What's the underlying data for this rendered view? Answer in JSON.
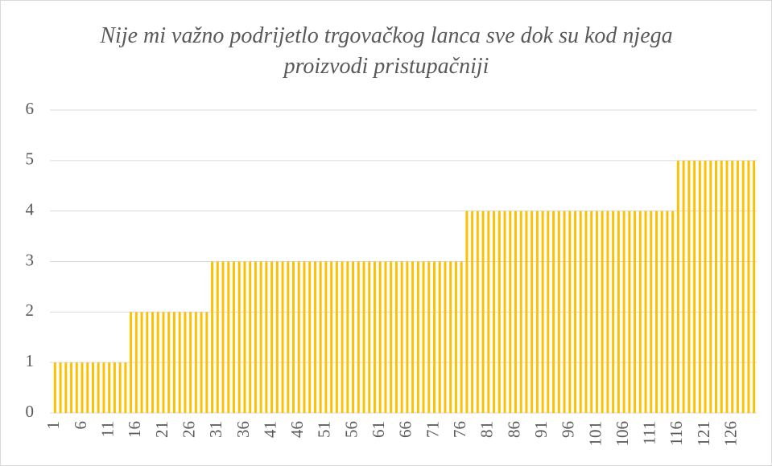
{
  "chart_data": {
    "type": "bar",
    "title": "Nije mi važno podrijetlo trgovačkog lanca sve dok su kod njega proizvodi pristupačniji",
    "categories": [
      1,
      null,
      null,
      null,
      null,
      6,
      null,
      null,
      null,
      null,
      11,
      null,
      null,
      null,
      null,
      16,
      null,
      null,
      null,
      null,
      21,
      null,
      null,
      null,
      null,
      26,
      null,
      null,
      null,
      null,
      31,
      null,
      null,
      null,
      null,
      36,
      null,
      null,
      null,
      null,
      41,
      null,
      null,
      null,
      null,
      46,
      null,
      null,
      null,
      null,
      51,
      null,
      null,
      null,
      null,
      56,
      null,
      null,
      null,
      null,
      61,
      null,
      null,
      null,
      null,
      66,
      null,
      null,
      null,
      null,
      71,
      null,
      null,
      null,
      null,
      76,
      null,
      null,
      null,
      null,
      81,
      null,
      null,
      null,
      null,
      86,
      null,
      null,
      null,
      null,
      91,
      null,
      null,
      null,
      null,
      96,
      null,
      null,
      null,
      null,
      101,
      null,
      null,
      null,
      null,
      106,
      null,
      null,
      null,
      null,
      111,
      null,
      null,
      null,
      null,
      116,
      null,
      null,
      null,
      null,
      121,
      null,
      null,
      null,
      null,
      126,
      null,
      null,
      null,
      null
    ],
    "values": [
      1,
      1,
      1,
      1,
      1,
      1,
      1,
      1,
      1,
      1,
      1,
      1,
      1,
      1,
      2,
      2,
      2,
      2,
      2,
      2,
      2,
      2,
      2,
      2,
      2,
      2,
      2,
      2,
      2,
      3,
      3,
      3,
      3,
      3,
      3,
      3,
      3,
      3,
      3,
      3,
      3,
      3,
      3,
      3,
      3,
      3,
      3,
      3,
      3,
      3,
      3,
      3,
      3,
      3,
      3,
      3,
      3,
      3,
      3,
      3,
      3,
      3,
      3,
      3,
      3,
      3,
      3,
      3,
      3,
      3,
      3,
      3,
      3,
      3,
      3,
      3,
      4,
      4,
      4,
      4,
      4,
      4,
      4,
      4,
      4,
      4,
      4,
      4,
      4,
      4,
      4,
      4,
      4,
      4,
      4,
      4,
      4,
      4,
      4,
      4,
      4,
      4,
      4,
      4,
      4,
      4,
      4,
      4,
      4,
      4,
      4,
      4,
      4,
      4,
      4,
      5,
      5,
      5,
      5,
      5,
      5,
      5,
      5,
      5,
      5,
      5,
      5,
      5,
      5,
      5
    ],
    "color": "#ffc000",
    "ylim": [
      0,
      6
    ],
    "yticks": [
      0,
      1,
      2,
      3,
      4,
      5,
      6
    ],
    "grid": true
  }
}
